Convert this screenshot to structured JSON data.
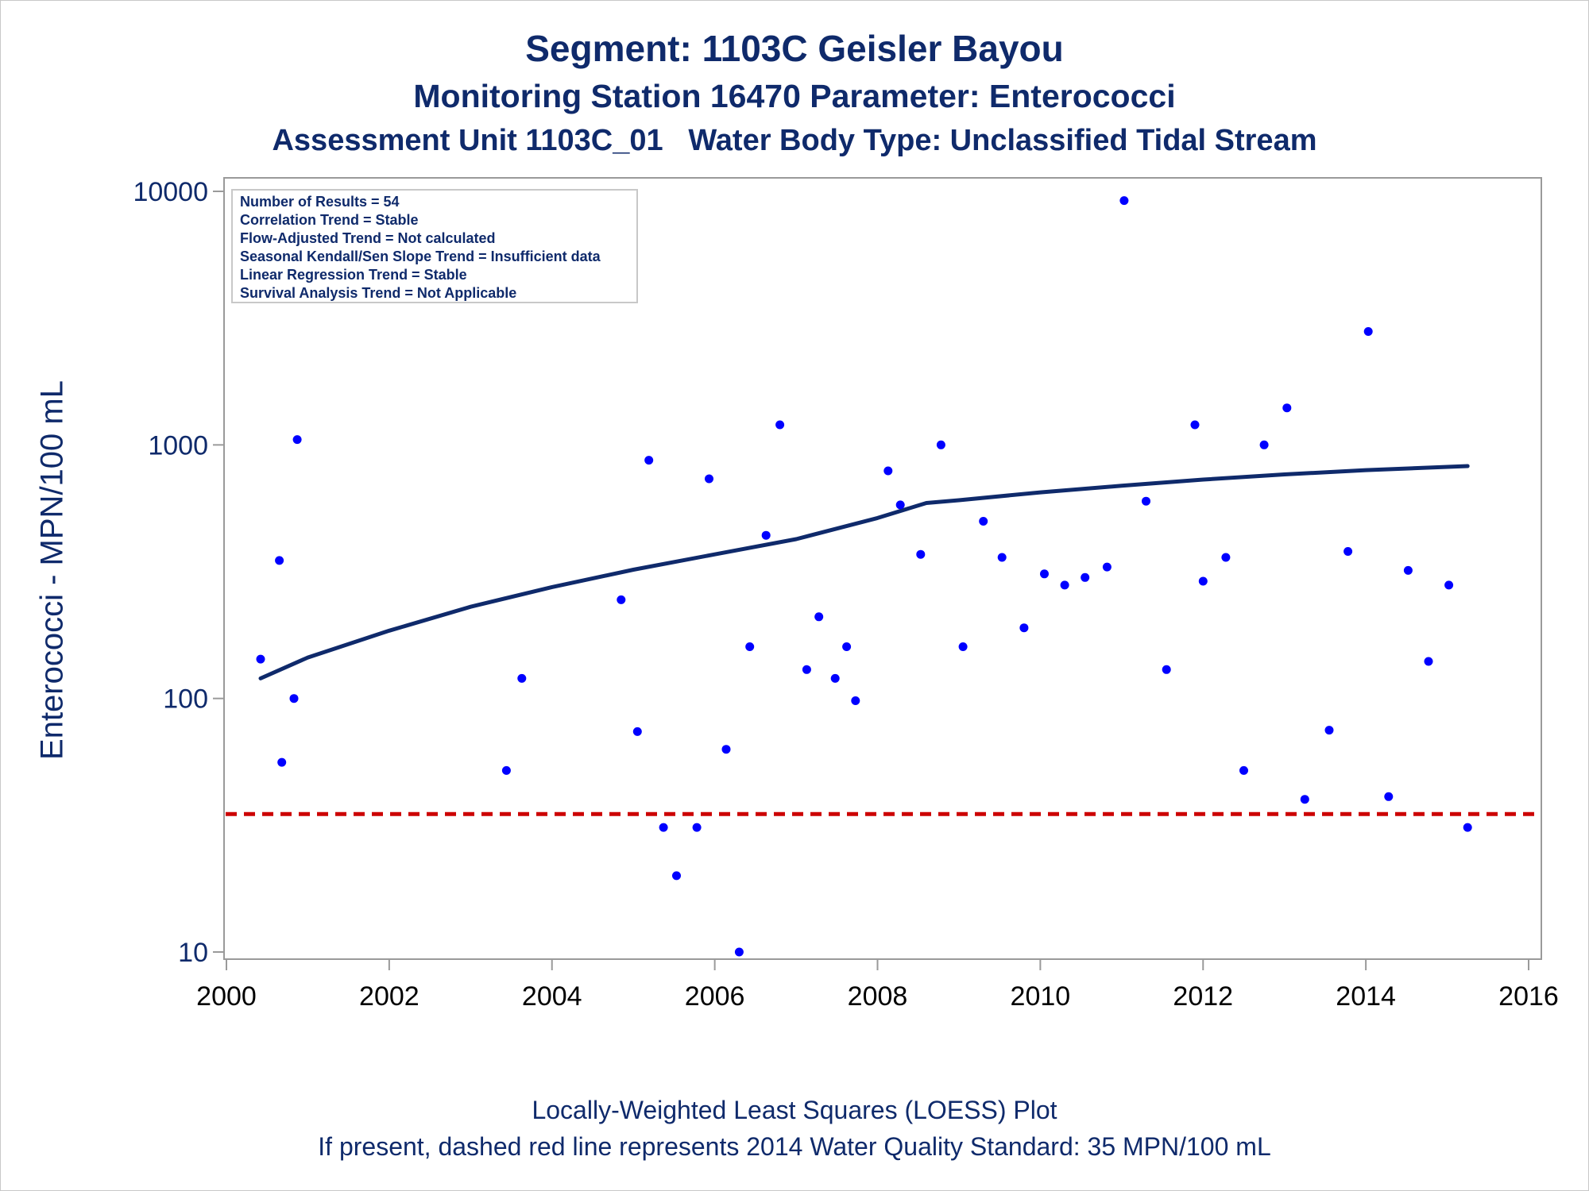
{
  "titles": {
    "line1": "Segment: 1103C  Geisler Bayou",
    "line2": "Monitoring Station 16470 Parameter: Enterococci",
    "line3": "Assessment Unit 1103C_01   Water Body Type: Unclassified Tidal Stream"
  },
  "footer": {
    "line1": "Locally-Weighted Least Squares (LOESS) Plot",
    "line2": "If present, dashed red line represents 2014 Water Quality Standard: 35 MPN/100 mL"
  },
  "stats_box": [
    "Number of Results = 54",
    "Correlation Trend = Stable",
    "Flow-Adjusted Trend = Not calculated",
    "Seasonal Kendall/Sen Slope Trend = Insufficient data",
    "Linear Regression Trend = Stable",
    "Survival Analysis Trend = Not Applicable"
  ],
  "colors": {
    "points": "#0000ff",
    "loess": "#0f2a6b",
    "standard_line": "#cc0000",
    "text": "#0f2a6b",
    "axis": "#9a9a9a"
  },
  "chart_data": {
    "type": "scatter",
    "title": "Segment: 1103C  Geisler Bayou",
    "xlabel": "",
    "ylabel": "Enterococci - MPN/100 mL",
    "y_scale": "log",
    "xlim": [
      2000,
      2016
    ],
    "ylim": [
      10,
      10000
    ],
    "x_ticks": [
      2000,
      2002,
      2004,
      2006,
      2008,
      2010,
      2012,
      2014,
      2016
    ],
    "y_ticks": [
      10,
      100,
      1000,
      10000
    ],
    "grid": false,
    "legend": "top-left",
    "standard_line": {
      "y": 35,
      "style": "dashed",
      "color": "#cc0000"
    },
    "points": [
      {
        "x": 2000.42,
        "y": 143
      },
      {
        "x": 2000.65,
        "y": 350
      },
      {
        "x": 2000.68,
        "y": 56
      },
      {
        "x": 2000.83,
        "y": 100
      },
      {
        "x": 2000.87,
        "y": 1050
      },
      {
        "x": 2003.44,
        "y": 52
      },
      {
        "x": 2003.63,
        "y": 120
      },
      {
        "x": 2004.85,
        "y": 245
      },
      {
        "x": 2005.05,
        "y": 74
      },
      {
        "x": 2005.19,
        "y": 870
      },
      {
        "x": 2005.37,
        "y": 31
      },
      {
        "x": 2005.53,
        "y": 20
      },
      {
        "x": 2005.78,
        "y": 31
      },
      {
        "x": 2005.93,
        "y": 735
      },
      {
        "x": 2006.14,
        "y": 63
      },
      {
        "x": 2006.3,
        "y": 10
      },
      {
        "x": 2006.43,
        "y": 160
      },
      {
        "x": 2006.63,
        "y": 440
      },
      {
        "x": 2006.8,
        "y": 1200
      },
      {
        "x": 2007.13,
        "y": 130
      },
      {
        "x": 2007.28,
        "y": 210
      },
      {
        "x": 2007.48,
        "y": 120
      },
      {
        "x": 2007.62,
        "y": 160
      },
      {
        "x": 2007.73,
        "y": 98
      },
      {
        "x": 2008.13,
        "y": 790
      },
      {
        "x": 2008.28,
        "y": 580
      },
      {
        "x": 2008.53,
        "y": 370
      },
      {
        "x": 2008.78,
        "y": 1000
      },
      {
        "x": 2009.05,
        "y": 160
      },
      {
        "x": 2009.3,
        "y": 500
      },
      {
        "x": 2009.53,
        "y": 360
      },
      {
        "x": 2009.8,
        "y": 190
      },
      {
        "x": 2010.05,
        "y": 310
      },
      {
        "x": 2010.3,
        "y": 280
      },
      {
        "x": 2010.55,
        "y": 300
      },
      {
        "x": 2010.82,
        "y": 330
      },
      {
        "x": 2011.03,
        "y": 9200
      },
      {
        "x": 2011.3,
        "y": 600
      },
      {
        "x": 2011.55,
        "y": 130
      },
      {
        "x": 2011.9,
        "y": 1200
      },
      {
        "x": 2012.0,
        "y": 290
      },
      {
        "x": 2012.28,
        "y": 360
      },
      {
        "x": 2012.5,
        "y": 52
      },
      {
        "x": 2012.75,
        "y": 1000
      },
      {
        "x": 2013.03,
        "y": 1400
      },
      {
        "x": 2013.25,
        "y": 40
      },
      {
        "x": 2013.55,
        "y": 75
      },
      {
        "x": 2013.78,
        "y": 380
      },
      {
        "x": 2014.03,
        "y": 2800
      },
      {
        "x": 2014.28,
        "y": 41
      },
      {
        "x": 2014.52,
        "y": 320
      },
      {
        "x": 2014.77,
        "y": 140
      },
      {
        "x": 2015.02,
        "y": 280
      },
      {
        "x": 2015.25,
        "y": 31
      }
    ],
    "loess": [
      {
        "x": 2000.42,
        "y": 120
      },
      {
        "x": 2001.0,
        "y": 145
      },
      {
        "x": 2002.0,
        "y": 185
      },
      {
        "x": 2003.0,
        "y": 230
      },
      {
        "x": 2004.0,
        "y": 275
      },
      {
        "x": 2005.0,
        "y": 322
      },
      {
        "x": 2006.0,
        "y": 370
      },
      {
        "x": 2007.0,
        "y": 425
      },
      {
        "x": 2008.0,
        "y": 515
      },
      {
        "x": 2008.6,
        "y": 590
      },
      {
        "x": 2009.0,
        "y": 605
      },
      {
        "x": 2010.0,
        "y": 650
      },
      {
        "x": 2011.0,
        "y": 690
      },
      {
        "x": 2012.0,
        "y": 730
      },
      {
        "x": 2013.0,
        "y": 765
      },
      {
        "x": 2014.0,
        "y": 795
      },
      {
        "x": 2015.25,
        "y": 825
      }
    ]
  }
}
